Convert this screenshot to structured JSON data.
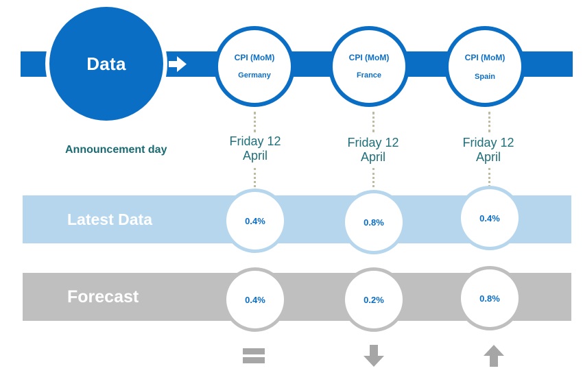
{
  "data_row": {
    "label": "Data"
  },
  "announcement": {
    "label": "Announcement day"
  },
  "columns": [
    {
      "cpi": "CPI (MoM)",
      "country": "Germany",
      "date_line1": "Friday 12",
      "date_line2": "April",
      "latest": "0.4%",
      "forecast": "0.4%",
      "trend": "equal"
    },
    {
      "cpi": "CPI (MoM)",
      "country": "France",
      "date_line1": "Friday 12",
      "date_line2": "April",
      "latest": "0.8%",
      "forecast": "0.2%",
      "trend": "down"
    },
    {
      "cpi": "CPI (MoM)",
      "country": "Spain",
      "date_line1": "Friday 12",
      "date_line2": "April",
      "latest": "0.4%",
      "forecast": "0.8%",
      "trend": "up"
    }
  ],
  "latest_row": {
    "label": "Latest Data"
  },
  "forecast_row": {
    "label": "Forecast"
  },
  "colors": {
    "primary": "#0b6ec5",
    "latest_band": "#b6d6ee",
    "forecast_band": "#bfbfbf",
    "trend_icon": "#a6a6a6",
    "date_text": "#1f6f7a"
  },
  "icons": {
    "arrow": "arrow-right-icon",
    "trend_equal": "equal-icon",
    "trend_down": "arrow-down-icon",
    "trend_up": "arrow-up-icon"
  }
}
